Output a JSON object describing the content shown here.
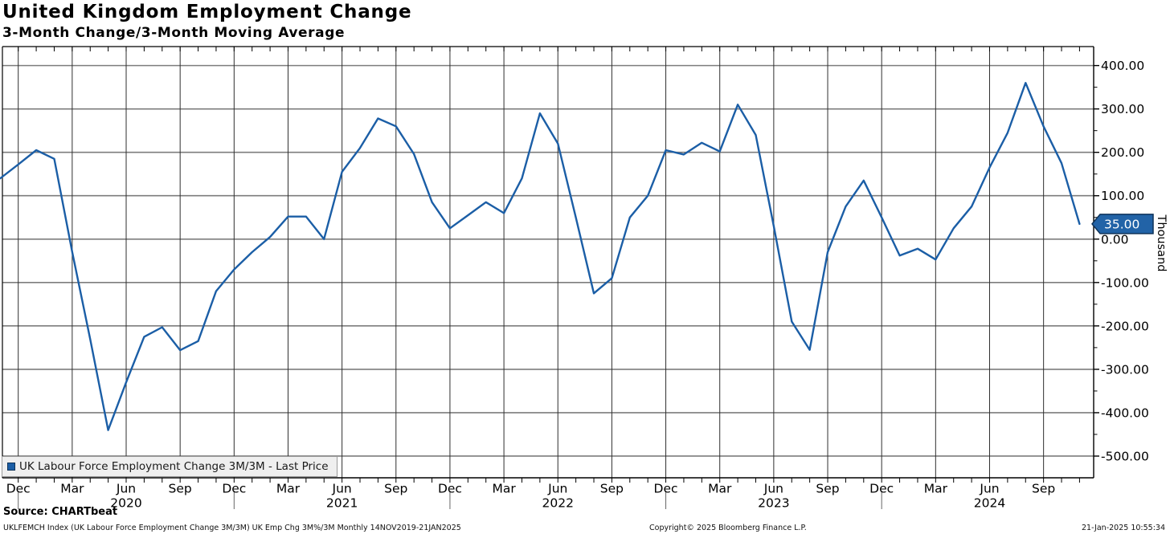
{
  "header": {
    "title": "United Kingdom Employment Change",
    "subtitle": "3-Month Change/3-Month Moving Average"
  },
  "legend": {
    "label": "UK Labour Force Employment Change 3M/3M - Last Price"
  },
  "last_price": {
    "value": "35.00"
  },
  "y_axis": {
    "unit_label": "Thousand",
    "tick_labels": [
      "400.00",
      "300.00",
      "200.00",
      "100.00",
      "0.00",
      "-100.00",
      "-200.00",
      "-300.00",
      "-400.00",
      "-500.00"
    ]
  },
  "x_axis": {
    "tick_labels": [
      "Dec",
      "Mar",
      "Jun",
      "Sep",
      "Dec",
      "Mar",
      "Jun",
      "Sep",
      "Dec",
      "Mar",
      "Jun",
      "Sep",
      "Dec",
      "Mar",
      "Jun",
      "Sep",
      "Dec",
      "Mar",
      "Jun",
      "Sep"
    ],
    "year_labels": [
      "2020",
      "2021",
      "2022",
      "2023",
      "2024"
    ]
  },
  "footer": {
    "source": "Source: CHARTbeat",
    "description": "UKLFEMCH Index (UK Labour Force Employment Change 3M/3M) UK Emp Chg 3M%/3M  Monthly 14NOV2019-21JAN2025",
    "copyright": "Copyright© 2025 Bloomberg Finance L.P.",
    "timestamp": "21-Jan-2025 10:55:34"
  },
  "colors": {
    "line": "#1b5ea6",
    "badge_fill": "#2263a7",
    "badge_border": "#0e3359",
    "grid_h": "#7d7d7d",
    "grid_v": "#2f2f2f",
    "axis": "#000000",
    "legend_bg": "#efefef"
  },
  "chart_data": {
    "type": "line",
    "title": "United Kingdom Employment Change",
    "subtitle": "3-Month Change/3-Month Moving Average",
    "series_name": "UK Labour Force Employment Change 3M/3M - Last Price",
    "unit": "Thousand",
    "ylim": [
      -550,
      440
    ],
    "grid": "on",
    "legend_position": "bottom-left",
    "last_price": 35.0,
    "x": [
      "Nov 2019",
      "Dec 2019",
      "Jan 2020",
      "Feb 2020",
      "Mar 2020",
      "Apr 2020",
      "May 2020",
      "Jun 2020",
      "Jul 2020",
      "Aug 2020",
      "Sep 2020",
      "Oct 2020",
      "Nov 2020",
      "Dec 2020",
      "Jan 2021",
      "Feb 2021",
      "Mar 2021",
      "Apr 2021",
      "May 2021",
      "Jun 2021",
      "Jul 2021",
      "Aug 2021",
      "Sep 2021",
      "Oct 2021",
      "Nov 2021",
      "Dec 2021",
      "Jan 2022",
      "Feb 2022",
      "Mar 2022",
      "Apr 2022",
      "May 2022",
      "Jun 2022",
      "Jul 2022",
      "Aug 2022",
      "Sep 2022",
      "Oct 2022",
      "Nov 2022",
      "Dec 2022",
      "Jan 2023",
      "Feb 2023",
      "Mar 2023",
      "Apr 2023",
      "May 2023",
      "Jun 2023",
      "Jul 2023",
      "Aug 2023",
      "Sep 2023",
      "Oct 2023",
      "Nov 2023",
      "Dec 2023",
      "Jan 2024",
      "Feb 2024",
      "Mar 2024",
      "Apr 2024",
      "May 2024",
      "Jun 2024",
      "Jul 2024",
      "Aug 2024",
      "Sep 2024",
      "Oct 2024",
      "Nov 2024"
    ],
    "values": [
      140,
      172,
      205,
      185,
      -30,
      -230,
      -440,
      -330,
      -225,
      -203,
      -256,
      -235,
      -120,
      -70,
      -30,
      5,
      52,
      52,
      0,
      155,
      210,
      278,
      260,
      196,
      85,
      25,
      55,
      85,
      60,
      140,
      290,
      220,
      50,
      -125,
      -90,
      50,
      100,
      205,
      195,
      222,
      202,
      310,
      240,
      30,
      -190,
      -255,
      -30,
      75,
      135,
      50,
      -38,
      -22,
      -47,
      25,
      75,
      165,
      245,
      360,
      260,
      175,
      35
    ]
  }
}
